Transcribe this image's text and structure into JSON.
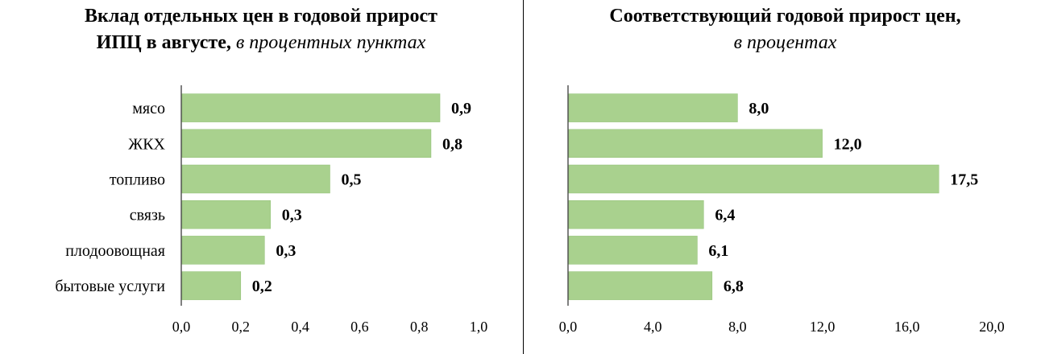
{
  "chart_data": [
    {
      "type": "bar",
      "orientation": "horizontal",
      "title_bold": "Вклад отдельных цен в годовой прирост",
      "title_bold_line2": "ИПЦ в августе,",
      "title_italic": "в процентных пунктах",
      "categories": [
        "мясо",
        "ЖКХ",
        "топливо",
        "связь",
        "плодоовощная",
        "бытовые услуги"
      ],
      "values": [
        0.87,
        0.84,
        0.5,
        0.3,
        0.28,
        0.2
      ],
      "value_labels": [
        "0,9",
        "0,8",
        "0,5",
        "0,3",
        "0,3",
        "0,2"
      ],
      "xlim": [
        0,
        1.0
      ],
      "ticks": [
        0,
        0.2,
        0.4,
        0.6,
        0.8,
        1.0
      ],
      "tick_labels": [
        "0,0",
        "0,2",
        "0,4",
        "0,6",
        "0,8",
        "1,0"
      ],
      "bar_color": "#a9d18e",
      "grid": false
    },
    {
      "type": "bar",
      "orientation": "horizontal",
      "title_bold": "Соответствующий годовой прирост цен,",
      "title_italic": "в процентах",
      "categories": [
        "мясо",
        "ЖКХ",
        "топливо",
        "связь",
        "плодоовощная",
        "бытовые услуги"
      ],
      "values": [
        8.0,
        12.0,
        17.5,
        6.4,
        6.1,
        6.8
      ],
      "value_labels": [
        "8,0",
        "12,0",
        "17,5",
        "6,4",
        "6,1",
        "6,8"
      ],
      "xlim": [
        0,
        20.0
      ],
      "ticks": [
        0,
        4,
        8,
        12,
        16,
        20
      ],
      "tick_labels": [
        "0,0",
        "4,0",
        "8,0",
        "12,0",
        "16,0",
        "20,0"
      ],
      "bar_color": "#a9d18e",
      "grid": false
    }
  ]
}
